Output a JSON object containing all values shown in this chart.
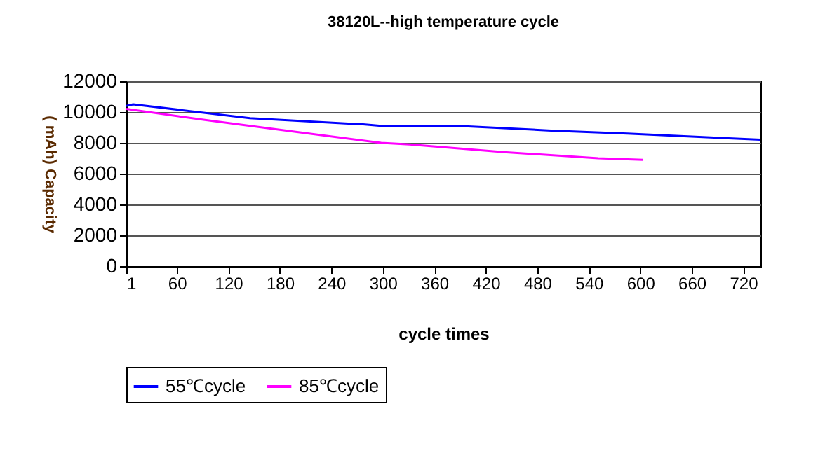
{
  "chart_data": {
    "type": "line",
    "title": "38120L--high temperature cycle",
    "xlabel": "cycle times",
    "ylabel": "( mAh)  Capacity",
    "xlim": [
      1,
      740
    ],
    "xticks": [
      1,
      60,
      120,
      180,
      240,
      300,
      360,
      420,
      480,
      540,
      600,
      660,
      720
    ],
    "ylim": [
      0,
      12000
    ],
    "yticks": [
      0,
      2000,
      4000,
      6000,
      8000,
      10000,
      12000
    ],
    "grid": "y",
    "legend": "bottom",
    "series": [
      {
        "name": "55℃cycle",
        "color": "#0000ff",
        "x": [
          1,
          9,
          145,
          277,
          298,
          387,
          496,
          585,
          740
        ],
        "values": [
          10400,
          10500,
          9600,
          9200,
          9100,
          9100,
          8800,
          8600,
          8200
        ]
      },
      {
        "name": "85℃cycle",
        "color": "#ff00ff",
        "x": [
          1,
          91,
          200,
          298,
          331,
          441,
          551,
          603
        ],
        "values": [
          10200,
          9500,
          8700,
          8000,
          7900,
          7400,
          7000,
          6900
        ]
      }
    ]
  }
}
